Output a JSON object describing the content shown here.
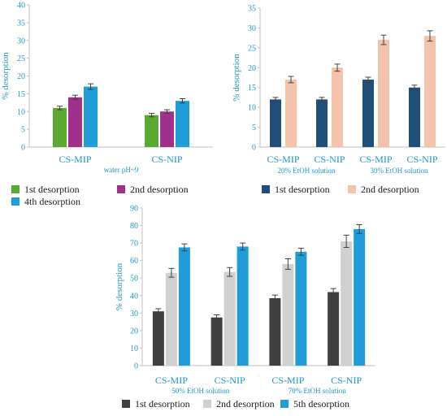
{
  "chart_data": [
    {
      "type": "bar",
      "categories": [
        "CS-MIP",
        "CS-NIP"
      ],
      "group_notes": [
        {
          "text": "water pH~9",
          "span": [
            0,
            1
          ]
        }
      ],
      "series": [
        {
          "name": "1st desorption",
          "color": "#5aaa32",
          "values": [
            11,
            9
          ],
          "errors": [
            0.5,
            0.5
          ]
        },
        {
          "name": "2nd desorption",
          "color": "#a0308a",
          "values": [
            14,
            10
          ],
          "errors": [
            0.6,
            0.5
          ]
        },
        {
          "name": "4th desorption",
          "color": "#1f9dd8",
          "values": [
            17,
            13
          ],
          "errors": [
            0.8,
            0.6
          ]
        }
      ],
      "ylabel": "% desorption",
      "ylim": [
        0,
        40
      ],
      "yticks": [
        0,
        5,
        10,
        15,
        20,
        25,
        30,
        35,
        40
      ],
      "legend": "bottom"
    },
    {
      "type": "bar",
      "categories": [
        "CS-MIP",
        "CS-NIP",
        "CS-MIP",
        "CS-NIP"
      ],
      "group_notes": [
        {
          "text": "20% EtOH solution",
          "span": [
            0,
            1
          ]
        },
        {
          "text": "30% EtOH solution",
          "span": [
            2,
            3
          ]
        }
      ],
      "series": [
        {
          "name": "1st desorption",
          "color": "#1f4e79",
          "values": [
            12,
            12,
            17,
            15
          ],
          "errors": [
            0.5,
            0.5,
            0.6,
            0.6
          ]
        },
        {
          "name": "2nd desorption",
          "color": "#f4c4aa",
          "values": [
            17,
            20,
            27,
            28
          ],
          "errors": [
            0.8,
            0.9,
            1.2,
            1.3
          ]
        }
      ],
      "ylabel": "% desorption",
      "ylim": [
        0,
        35
      ],
      "yticks": [
        0,
        5,
        10,
        15,
        20,
        25,
        30,
        35
      ],
      "legend": "bottom"
    },
    {
      "type": "bar",
      "categories": [
        "CS-MIP",
        "CS-NIP",
        "CS-MIP",
        "CS-NIP"
      ],
      "group_notes": [
        {
          "text": "50% EtOH solution",
          "span": [
            0,
            1
          ]
        },
        {
          "text": "70% EtOH solution",
          "span": [
            2,
            3
          ]
        }
      ],
      "series": [
        {
          "name": "1st desorption",
          "color": "#404040",
          "values": [
            31,
            27.5,
            38.5,
            42
          ],
          "errors": [
            1.5,
            1.5,
            1.8,
            2
          ]
        },
        {
          "name": "2nd desorption",
          "color": "#d0d0d0",
          "values": [
            53,
            53.5,
            58,
            71
          ],
          "errors": [
            2.5,
            2.5,
            3,
            3.5
          ]
        },
        {
          "name": "5th desorption",
          "color": "#1f9dd8",
          "values": [
            67.5,
            68,
            65,
            78
          ],
          "errors": [
            2,
            2,
            2,
            2.5
          ]
        }
      ],
      "ylabel": "% desorption",
      "ylim": [
        0,
        90
      ],
      "yticks": [
        0,
        10,
        20,
        30,
        40,
        50,
        60,
        70,
        80,
        90
      ],
      "legend": "bottom"
    }
  ]
}
